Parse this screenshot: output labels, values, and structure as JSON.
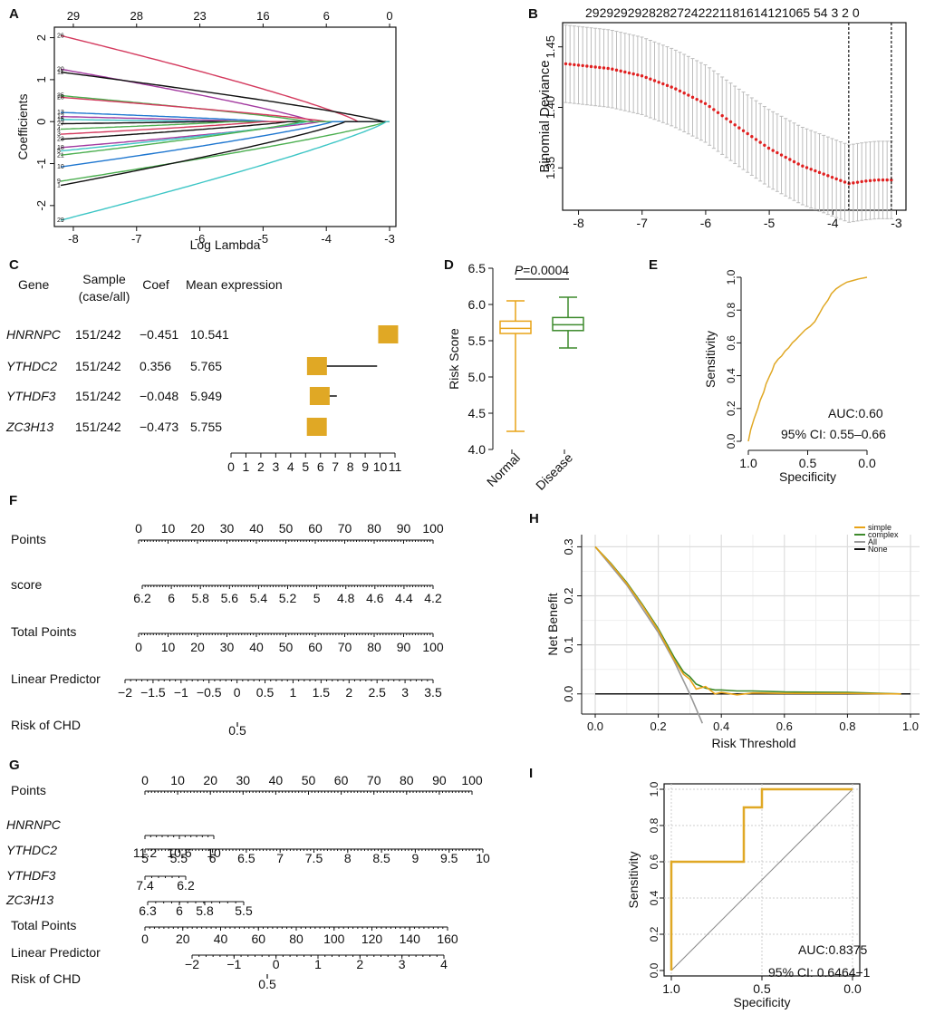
{
  "chart_data": [
    {
      "panel": "A",
      "type": "line",
      "xlabel": "Log Lambda",
      "ylabel": "Coefficients",
      "xlim": [
        -8.3,
        -2.9
      ],
      "ylim": [
        -2.5,
        2.25
      ],
      "x_ticks": [
        -8,
        -7,
        -6,
        -5,
        -4,
        -3
      ],
      "y_ticks": [
        -2,
        -1,
        0,
        1,
        2
      ],
      "top_axis_ticks": [
        {
          "at": -8,
          "label": "29"
        },
        {
          "at": -7,
          "label": "28"
        },
        {
          "at": -6,
          "label": "23"
        },
        {
          "at": -5,
          "label": "16"
        },
        {
          "at": -4,
          "label": "6"
        },
        {
          "at": -3,
          "label": "0"
        }
      ],
      "series": [
        {
          "name": "26",
          "start": 2.05,
          "zero_at": -3.5,
          "color": "#d43a5e"
        },
        {
          "name": "20",
          "start": 1.25,
          "zero_at": -4.2,
          "color": "#a33aa0"
        },
        {
          "name": "11",
          "start": 1.18,
          "zero_at": -3.1,
          "color": "#111111"
        },
        {
          "name": "25",
          "start": 0.62,
          "zero_at": -4.3,
          "color": "#4caf50"
        },
        {
          "name": "28",
          "start": 0.58,
          "zero_at": -4.0,
          "color": "#d43a5e"
        },
        {
          "name": "13",
          "start": 0.22,
          "zero_at": -4.9,
          "color": "#1f77d0"
        },
        {
          "name": "12",
          "start": 0.12,
          "zero_at": -5.2,
          "color": "#a33aa0"
        },
        {
          "name": "15",
          "start": 0.05,
          "zero_at": -5.8,
          "color": "#3ec6c6"
        },
        {
          "name": "27",
          "start": -0.05,
          "zero_at": -5.9,
          "color": "#111111"
        },
        {
          "name": "4",
          "start": -0.18,
          "zero_at": -5.5,
          "color": "#4caf50"
        },
        {
          "name": "3",
          "start": -0.3,
          "zero_at": -5.0,
          "color": "#d43a5e"
        },
        {
          "name": "23",
          "start": -0.42,
          "zero_at": -4.6,
          "color": "#111111"
        },
        {
          "name": "18",
          "start": -0.62,
          "zero_at": -4.1,
          "color": "#a33aa0"
        },
        {
          "name": "5",
          "start": -0.7,
          "zero_at": -4.3,
          "color": "#3ec6c6"
        },
        {
          "name": "21",
          "start": -0.8,
          "zero_at": -4.4,
          "color": "#4caf50"
        },
        {
          "name": "10",
          "start": -1.08,
          "zero_at": -3.9,
          "color": "#1f77d0"
        },
        {
          "name": "9",
          "start": -1.42,
          "zero_at": -3.05,
          "color": "#4caf50"
        },
        {
          "name": "1",
          "start": -1.52,
          "zero_at": -3.7,
          "color": "#111111"
        },
        {
          "name": "29",
          "start": -2.35,
          "zero_at": -3.05,
          "color": "#3ec6c6"
        }
      ]
    },
    {
      "panel": "B",
      "type": "scatter",
      "ylabel": "Binomial Deviance",
      "xlim": [
        -8.25,
        -2.85
      ],
      "ylim": [
        1.315,
        1.47
      ],
      "x_ticks": [
        -8,
        -7,
        -6,
        -5,
        -4,
        -3
      ],
      "y_ticks": [
        1.35,
        1.4,
        1.45
      ],
      "top_axis_labels": "29292929282827242221181614121065 54 3 2 0",
      "vlines": [
        -3.75,
        -3.08
      ],
      "curve_knots": [
        [
          -8.2,
          1.436
        ],
        [
          -7.5,
          1.432
        ],
        [
          -7.0,
          1.426
        ],
        [
          -6.5,
          1.416
        ],
        [
          -6.0,
          1.403
        ],
        [
          -5.5,
          1.384
        ],
        [
          -5.0,
          1.366
        ],
        [
          -4.5,
          1.352
        ],
        [
          -4.0,
          1.342
        ],
        [
          -3.75,
          1.337
        ],
        [
          -3.5,
          1.339
        ],
        [
          -3.3,
          1.34
        ],
        [
          -3.08,
          1.34
        ]
      ],
      "error_halfwidth": 0.032
    },
    {
      "panel": "C",
      "type": "table",
      "headers": {
        "gene": "Gene",
        "sample": "Sample",
        "sample2": "(case/all)",
        "coef": "Coef",
        "mean": "Mean expression"
      },
      "rows": [
        {
          "gene": "HNRNPC",
          "sample": "151/242",
          "coef": "−0.451",
          "mean": "10.541",
          "value": 10.541,
          "ci": null
        },
        {
          "gene": "YTHDC2",
          "sample": "151/242",
          "coef": "0.356",
          "mean": "5.765",
          "value": 5.765,
          "ci": [
            5.2,
            9.8
          ]
        },
        {
          "gene": "YTHDF3",
          "sample": "151/242",
          "coef": "−0.048",
          "mean": "5.949",
          "value": 5.949,
          "ci": [
            5.4,
            7.1
          ]
        },
        {
          "gene": "ZC3H13",
          "sample": "151/242",
          "coef": "−0.473",
          "mean": "5.755",
          "value": 5.755,
          "ci": null
        }
      ],
      "axis_ticks": [
        "0",
        "1",
        "2",
        "3",
        "4",
        "5",
        "6",
        "7",
        "8",
        "9",
        "10",
        "11"
      ]
    },
    {
      "panel": "D",
      "type": "bar",
      "ylabel": "Risk Score",
      "ylim": [
        4.0,
        6.5
      ],
      "y_ticks": [
        "4.0",
        "4.5",
        "5.0",
        "5.5",
        "6.0",
        "6.5"
      ],
      "pvalue": "P=0.0004",
      "groups": [
        {
          "name": "Normal",
          "min": 4.25,
          "q1": 5.6,
          "median": 5.67,
          "q3": 5.77,
          "max": 6.05,
          "color": "#e8a317"
        },
        {
          "name": "Disease",
          "min": 5.4,
          "q1": 5.64,
          "median": 5.72,
          "q3": 5.82,
          "max": 6.1,
          "color": "#3d8a2c"
        }
      ]
    },
    {
      "panel": "E",
      "type": "line",
      "xlabel": "Specificity",
      "ylabel": "Sensitivity",
      "x_ticks": [
        "1.0",
        "0.5",
        "0.0"
      ],
      "y_ticks": [
        "0.0",
        "0.2",
        "0.4",
        "0.6",
        "0.8",
        "1.0"
      ],
      "auc": "AUC:0.60",
      "ci": "95% CI: 0.55–0.66",
      "points": [
        [
          0.0,
          0.0
        ],
        [
          0.02,
          0.07
        ],
        [
          0.05,
          0.14
        ],
        [
          0.08,
          0.2
        ],
        [
          0.1,
          0.25
        ],
        [
          0.13,
          0.3
        ],
        [
          0.15,
          0.35
        ],
        [
          0.18,
          0.4
        ],
        [
          0.2,
          0.43
        ],
        [
          0.22,
          0.47
        ],
        [
          0.25,
          0.5
        ],
        [
          0.28,
          0.52
        ],
        [
          0.31,
          0.55
        ],
        [
          0.34,
          0.57
        ],
        [
          0.37,
          0.6
        ],
        [
          0.4,
          0.62
        ],
        [
          0.44,
          0.65
        ],
        [
          0.48,
          0.68
        ],
        [
          0.52,
          0.7
        ],
        [
          0.56,
          0.73
        ],
        [
          0.6,
          0.78
        ],
        [
          0.63,
          0.82
        ],
        [
          0.67,
          0.86
        ],
        [
          0.7,
          0.9
        ],
        [
          0.74,
          0.93
        ],
        [
          0.78,
          0.95
        ],
        [
          0.83,
          0.97
        ],
        [
          0.88,
          0.98
        ],
        [
          0.93,
          0.99
        ],
        [
          1.0,
          1.0
        ]
      ]
    },
    {
      "panel": "H",
      "type": "line",
      "xlabel": "Risk Threshold",
      "ylabel": "Net Benefit",
      "x_ticks": [
        "0.0",
        "0.2",
        "0.4",
        "0.6",
        "0.8",
        "1.0"
      ],
      "y_ticks": [
        "0.0",
        "0.1",
        "0.2",
        "0.3"
      ],
      "xlim": [
        0,
        1
      ],
      "ylim": [
        -0.03,
        0.31
      ],
      "legend": [
        {
          "name": "simple",
          "color": "#e8a317"
        },
        {
          "name": "complex",
          "color": "#3d8a2c"
        },
        {
          "name": "All",
          "color": "#999999"
        },
        {
          "name": "None",
          "color": "#111111"
        }
      ],
      "series": [
        {
          "name": "simple",
          "points": [
            [
              0.0,
              0.3
            ],
            [
              0.05,
              0.265
            ],
            [
              0.1,
              0.225
            ],
            [
              0.15,
              0.18
            ],
            [
              0.2,
              0.13
            ],
            [
              0.25,
              0.07
            ],
            [
              0.28,
              0.04
            ],
            [
              0.3,
              0.03
            ],
            [
              0.32,
              0.01
            ],
            [
              0.35,
              0.015
            ],
            [
              0.38,
              0.0
            ],
            [
              0.4,
              0.003
            ],
            [
              0.45,
              -0.002
            ],
            [
              0.5,
              0.002
            ],
            [
              0.6,
              0.001
            ],
            [
              0.8,
              0.001
            ],
            [
              0.97,
              0.0
            ]
          ]
        },
        {
          "name": "complex",
          "points": [
            [
              0.0,
              0.3
            ],
            [
              0.05,
              0.266
            ],
            [
              0.1,
              0.227
            ],
            [
              0.15,
              0.182
            ],
            [
              0.2,
              0.133
            ],
            [
              0.25,
              0.075
            ],
            [
              0.28,
              0.045
            ],
            [
              0.3,
              0.035
            ],
            [
              0.32,
              0.02
            ],
            [
              0.35,
              0.012
            ],
            [
              0.38,
              0.008
            ],
            [
              0.4,
              0.008
            ],
            [
              0.45,
              0.006
            ],
            [
              0.5,
              0.006
            ],
            [
              0.6,
              0.004
            ],
            [
              0.8,
              0.003
            ],
            [
              0.97,
              0.0
            ]
          ]
        },
        {
          "name": "All",
          "points": [
            [
              0.0,
              0.3
            ],
            [
              0.1,
              0.222
            ],
            [
              0.2,
              0.125
            ],
            [
              0.25,
              0.067
            ],
            [
              0.3,
              0.0
            ],
            [
              0.34,
              -0.06
            ]
          ]
        },
        {
          "name": "None",
          "points": [
            [
              0.0,
              0.0
            ],
            [
              1.0,
              0.0
            ]
          ]
        }
      ]
    },
    {
      "panel": "I",
      "type": "line",
      "xlabel": "Specificity",
      "ylabel": "Sensitivity",
      "x_ticks": [
        "1.0",
        "0.5",
        "0.0"
      ],
      "y_ticks": [
        "0.0",
        "0.2",
        "0.4",
        "0.6",
        "0.8",
        "1.0"
      ],
      "auc": "AUC:0.8375",
      "ci": "95% CI: 0.6464−1",
      "points": [
        [
          0.0,
          0.0
        ],
        [
          0.0,
          0.6
        ],
        [
          0.4,
          0.6
        ],
        [
          0.4,
          0.9
        ],
        [
          0.5,
          0.9
        ],
        [
          0.5,
          1.0
        ],
        [
          1.0,
          1.0
        ]
      ]
    }
  ],
  "nomogram_f": {
    "rows": [
      {
        "label": "Points",
        "ticks": [
          "0",
          "10",
          "20",
          "30",
          "40",
          "50",
          "60",
          "70",
          "80",
          "90",
          "100"
        ],
        "pos": "above"
      },
      {
        "label": "score",
        "ticks": [
          "6.2",
          "6",
          "5.8",
          "5.6",
          "5.4",
          "5.2",
          "5",
          "4.8",
          "4.6",
          "4.4",
          "4.2"
        ],
        "pos": "below"
      },
      {
        "label": "Total Points",
        "ticks": [
          "0",
          "10",
          "20",
          "30",
          "40",
          "50",
          "60",
          "70",
          "80",
          "90",
          "100"
        ],
        "pos": "below"
      },
      {
        "label": "Linear Predictor",
        "ticks": [
          "−2",
          "−1.5",
          "−1",
          "−0.5",
          "0",
          "0.5",
          "1",
          "1.5",
          "2",
          "2.5",
          "3",
          "3.5"
        ],
        "pos": "below"
      },
      {
        "label": "Risk of CHD",
        "ticks": [
          "0.5"
        ],
        "pos": "below"
      }
    ]
  },
  "nomogram_g": {
    "rows": [
      {
        "label": "Points",
        "ticks": [
          "0",
          "10",
          "20",
          "30",
          "40",
          "50",
          "60",
          "70",
          "80",
          "90",
          "100"
        ],
        "italic": false
      },
      {
        "label": "HNRNPC",
        "ticks": [
          "11.2",
          "10.6",
          "10"
        ],
        "italic": true
      },
      {
        "label": "YTHDC2",
        "ticks": [
          "5",
          "5.5",
          "6",
          "6.5",
          "7",
          "7.5",
          "8",
          "8.5",
          "9",
          "9.5",
          "10"
        ],
        "italic": true
      },
      {
        "label": "YTHDF3",
        "ticks": [
          "7.4",
          "6.2"
        ],
        "italic": true
      },
      {
        "label": "ZC3H13",
        "ticks": [
          "6.3",
          "6",
          "5.8",
          "5.5"
        ],
        "italic": true
      },
      {
        "label": "Total Points",
        "ticks": [
          "0",
          "20",
          "40",
          "60",
          "80",
          "100",
          "120",
          "140",
          "160"
        ],
        "italic": false
      },
      {
        "label": "Linear Predictor",
        "ticks": [
          "−2",
          "−1",
          "0",
          "1",
          "2",
          "3",
          "4"
        ],
        "italic": false
      },
      {
        "label": "Risk of CHD",
        "ticks": [
          "0.5"
        ],
        "italic": false
      }
    ]
  },
  "panel_letters": [
    "A",
    "B",
    "C",
    "D",
    "E",
    "F",
    "G",
    "H",
    "I"
  ]
}
